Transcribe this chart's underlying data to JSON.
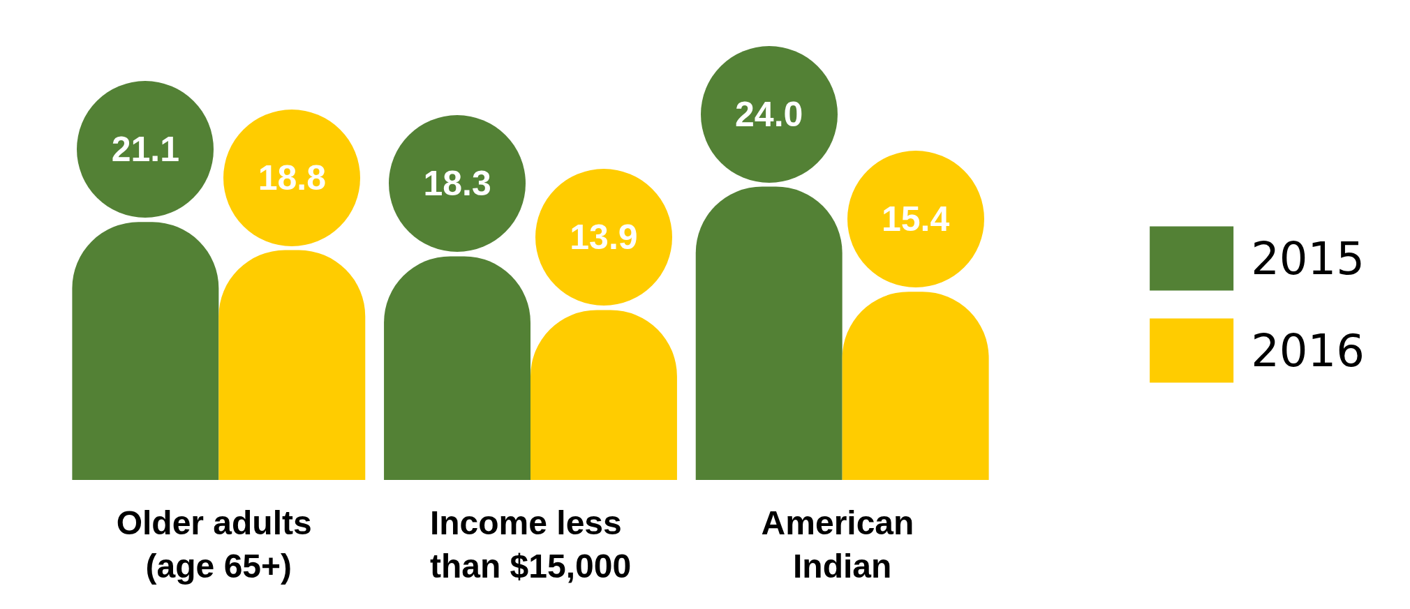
{
  "chart_data": {
    "type": "bar",
    "categories": [
      "Older adults (age 65+)",
      "Income less than $15,000",
      "American Indian"
    ],
    "series": [
      {
        "name": "2015",
        "color": "#538135",
        "values": [
          21.1,
          18.3,
          24.0
        ],
        "value_labels": [
          "21.1",
          "18.3",
          "24.0"
        ]
      },
      {
        "name": "2016",
        "color": "#ffcc00",
        "values": [
          18.8,
          13.9,
          15.4
        ],
        "value_labels": [
          "18.8",
          "13.9",
          "15.4"
        ]
      }
    ],
    "data_labels": true,
    "legend": "right",
    "grid": false
  }
}
